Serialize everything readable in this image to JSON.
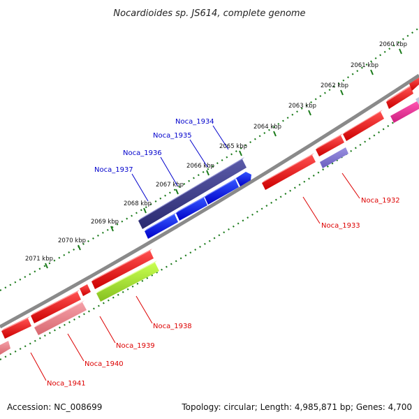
{
  "title": "Nocardioides sp. JS614, complete genome",
  "footer": {
    "accession": "Accession: NC_008699",
    "summary": "Topology: circular; Length: 4,985,871 bp; Genes: 4,700"
  },
  "colors": {
    "backbone": "#808080",
    "ticks": "#1a7a1a",
    "label_forward": "#0000cc",
    "label_reverse": "#dd0000"
  },
  "ticks": [
    "2060 kbp",
    "2061 kbp",
    "2062 kbp",
    "2063 kbp",
    "2064 kbp",
    "2065 kbp",
    "2066 kbp",
    "2067 kbp",
    "2068 kbp",
    "2069 kbp",
    "2070 kbp",
    "2071 kbp"
  ],
  "genes": [
    {
      "id": "Noca_1941",
      "strand": "reverse"
    },
    {
      "id": "Noca_1940",
      "strand": "reverse"
    },
    {
      "id": "Noca_1939",
      "strand": "reverse"
    },
    {
      "id": "Noca_1938",
      "strand": "reverse"
    },
    {
      "id": "Noca_1937",
      "strand": "forward"
    },
    {
      "id": "Noca_1936",
      "strand": "forward"
    },
    {
      "id": "Noca_1935",
      "strand": "forward"
    },
    {
      "id": "Noca_1934",
      "strand": "forward"
    },
    {
      "id": "Noca_1933",
      "strand": "reverse"
    },
    {
      "id": "Noca_1932",
      "strand": "reverse"
    }
  ]
}
